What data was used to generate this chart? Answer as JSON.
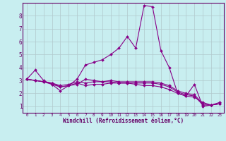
{
  "xlabel": "Windchill (Refroidissement éolien,°C)",
  "ylabel": "",
  "bg_color": "#c8eef0",
  "grid_color": "#b0c8cc",
  "line_color": "#880088",
  "x": [
    0,
    1,
    2,
    3,
    4,
    5,
    6,
    7,
    8,
    9,
    10,
    11,
    12,
    13,
    14,
    15,
    16,
    17,
    18,
    19,
    20,
    21,
    22,
    23
  ],
  "lines": [
    [
      3.1,
      3.8,
      3.0,
      2.7,
      2.2,
      2.6,
      3.1,
      4.2,
      4.4,
      4.6,
      5.0,
      5.5,
      6.4,
      5.5,
      8.8,
      8.7,
      5.3,
      4.0,
      2.0,
      1.8,
      2.7,
      1.0,
      1.1,
      1.3
    ],
    [
      3.1,
      3.0,
      2.9,
      2.7,
      2.5,
      2.6,
      2.7,
      3.1,
      3.0,
      2.9,
      2.9,
      2.8,
      2.8,
      2.7,
      2.6,
      2.6,
      2.5,
      2.3,
      2.0,
      1.8,
      1.7,
      1.3,
      1.1,
      1.2
    ],
    [
      3.1,
      3.0,
      2.9,
      2.8,
      2.5,
      2.6,
      2.8,
      2.6,
      2.7,
      2.7,
      2.8,
      2.8,
      2.8,
      2.8,
      2.8,
      2.8,
      2.7,
      2.5,
      2.1,
      1.9,
      1.8,
      1.1,
      1.1,
      1.2
    ],
    [
      3.1,
      3.0,
      2.9,
      2.8,
      2.6,
      2.7,
      2.9,
      2.8,
      2.9,
      2.9,
      3.0,
      2.9,
      2.9,
      2.9,
      2.9,
      2.9,
      2.8,
      2.6,
      2.2,
      2.0,
      1.9,
      1.2,
      1.1,
      1.2
    ]
  ],
  "xlim": [
    -0.5,
    23.5
  ],
  "ylim": [
    0.5,
    9.0
  ],
  "yticks": [
    1,
    2,
    3,
    4,
    5,
    6,
    7,
    8
  ],
  "xticks": [
    0,
    1,
    2,
    3,
    4,
    5,
    6,
    7,
    8,
    9,
    10,
    11,
    12,
    13,
    14,
    15,
    16,
    17,
    18,
    19,
    20,
    21,
    22,
    23
  ],
  "xlabel_fontsize": 5.5,
  "xtick_fontsize": 4.2,
  "ytick_fontsize": 5.5,
  "linewidth": 0.8,
  "markersize": 2.0
}
